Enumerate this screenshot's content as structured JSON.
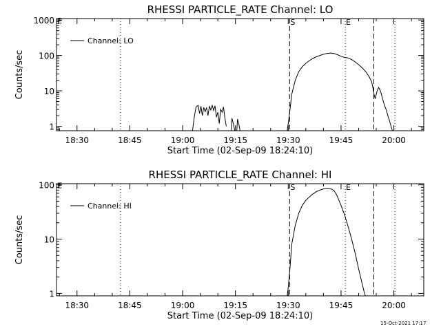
{
  "timestamp": "15-Oct-2021 17:17",
  "chart_data": [
    {
      "type": "line",
      "title": "RHESSI PARTICLE_RATE Channel: LO",
      "xlabel": "Start Time (02-Sep-09 18:24:10)",
      "ylabel": "Counts/sec",
      "x_ticks": [
        "18:30",
        "18:45",
        "19:00",
        "19:15",
        "19:30",
        "19:45",
        "20:00"
      ],
      "x_tick_minutes": [
        30,
        45,
        60,
        75,
        90,
        105,
        120
      ],
      "xlim_minutes": [
        24.17,
        128.5
      ],
      "y_scale": "log",
      "y_ticks": [
        "1",
        "10",
        "100",
        "1000"
      ],
      "y_tick_values": [
        1,
        10,
        100,
        1000
      ],
      "ylim": [
        0.75,
        1100
      ],
      "legend": {
        "label": "Channel: LO",
        "placement": "top-left"
      },
      "markers": [
        {
          "label": "S",
          "minute": 90.4,
          "style": "dashed"
        },
        {
          "label": "E",
          "minute": 106.2,
          "style": "dotted"
        }
      ],
      "extra_lines": [
        {
          "minute": 42.4,
          "style": "dotted"
        },
        {
          "minute": 114.3,
          "style": "dashed"
        },
        {
          "minute": 120.3,
          "style": "dotted"
        }
      ],
      "corner_marks": [
        {
          "label": "E",
          "minute": 24.2,
          "y": 1000
        }
      ],
      "segments": [
        {
          "x": [
            62.8,
            63.3,
            63.8,
            64.4,
            64.8,
            65.2,
            65.6,
            66.0,
            66.4,
            66.8,
            67.2,
            67.6,
            68.0,
            68.4,
            68.8,
            69.2,
            69.6,
            70.0,
            70.4,
            70.8,
            71.2,
            71.6,
            72.0,
            72.4
          ],
          "y": [
            0.75,
            1.8,
            3.5,
            3.9,
            2.3,
            3.7,
            2.0,
            3.4,
            2.6,
            3.3,
            2.0,
            3.7,
            2.9,
            3.9,
            2.8,
            3.8,
            1.8,
            2.5,
            1.2,
            3.0,
            2.5,
            3.5,
            1.7,
            1.0
          ]
        },
        {
          "x": [
            73.8,
            74.0,
            74.4,
            74.8
          ],
          "y": [
            0.75,
            1.7,
            1.2,
            0.75
          ]
        },
        {
          "x": [
            75.4,
            75.6,
            76.0,
            76.3
          ],
          "y": [
            0.75,
            1.6,
            1.1,
            0.75
          ]
        },
        {
          "x": [
            89.7,
            90.0,
            90.5,
            91.0,
            92.0,
            93.0,
            94.0,
            95.0,
            96.0,
            97.0,
            98.0,
            99.0,
            100.0,
            101.0,
            102.0,
            103.0,
            104.0,
            105.0,
            106.0,
            107.0,
            108.0,
            109.0,
            110.0,
            111.0,
            112.0,
            113.0,
            113.7,
            114.0,
            114.3,
            114.7,
            115.0,
            115.3,
            115.7,
            116.0,
            116.4,
            116.8,
            117.3,
            117.8,
            118.3,
            118.8,
            119.2,
            119.6
          ],
          "y": [
            0.75,
            1.2,
            3.0,
            8.0,
            20,
            35,
            48,
            60,
            72,
            82,
            92,
            100,
            108,
            114,
            117,
            114,
            105,
            95,
            88,
            85,
            76,
            66,
            55,
            45,
            35,
            25,
            18,
            13,
            8.5,
            6.0,
            8.0,
            10.5,
            12.5,
            11.0,
            8.5,
            6.0,
            4.0,
            3.0,
            2.0,
            1.4,
            1.0,
            0.75
          ]
        }
      ]
    },
    {
      "type": "line",
      "title": "RHESSI PARTICLE_RATE Channel: HI",
      "xlabel": "Start Time (02-Sep-09 18:24:10)",
      "ylabel": "Counts/sec",
      "x_ticks": [
        "18:30",
        "18:45",
        "19:00",
        "19:15",
        "19:30",
        "19:45",
        "20:00"
      ],
      "x_tick_minutes": [
        30,
        45,
        60,
        75,
        90,
        105,
        120
      ],
      "xlim_minutes": [
        24.17,
        128.5
      ],
      "y_scale": "log",
      "y_ticks": [
        "1",
        "10",
        "100"
      ],
      "y_tick_values": [
        1,
        10,
        100
      ],
      "ylim": [
        0.9,
        105
      ],
      "legend": {
        "label": "Channel: HI",
        "placement": "top-left"
      },
      "markers": [
        {
          "label": "S",
          "minute": 90.4,
          "style": "dashed"
        },
        {
          "label": "E",
          "minute": 106.2,
          "style": "dotted"
        }
      ],
      "extra_lines": [
        {
          "minute": 42.4,
          "style": "dotted"
        },
        {
          "minute": 114.3,
          "style": "dashed"
        },
        {
          "minute": 120.3,
          "style": "dotted"
        }
      ],
      "corner_marks": [
        {
          "label": "E",
          "minute": 24.2,
          "y": 100
        }
      ],
      "segments": [
        {
          "x": [
            89.7,
            90.0,
            90.5,
            91.0,
            92.0,
            93.0,
            94.0,
            95.0,
            96.0,
            97.0,
            98.0,
            99.0,
            100.0,
            101.0,
            102.0,
            102.5,
            103.0,
            103.5,
            104.0,
            105.0,
            106.0,
            107.0,
            108.0,
            109.0,
            110.0,
            111.0,
            111.5,
            111.9
          ],
          "y": [
            0.9,
            1.3,
            3.0,
            8.0,
            18,
            30,
            42,
            52,
            60,
            68,
            75,
            80,
            84,
            86,
            85,
            82,
            78,
            70,
            60,
            42,
            28,
            17,
            10,
            5.5,
            2.8,
            1.5,
            1.1,
            0.9
          ]
        }
      ]
    }
  ]
}
